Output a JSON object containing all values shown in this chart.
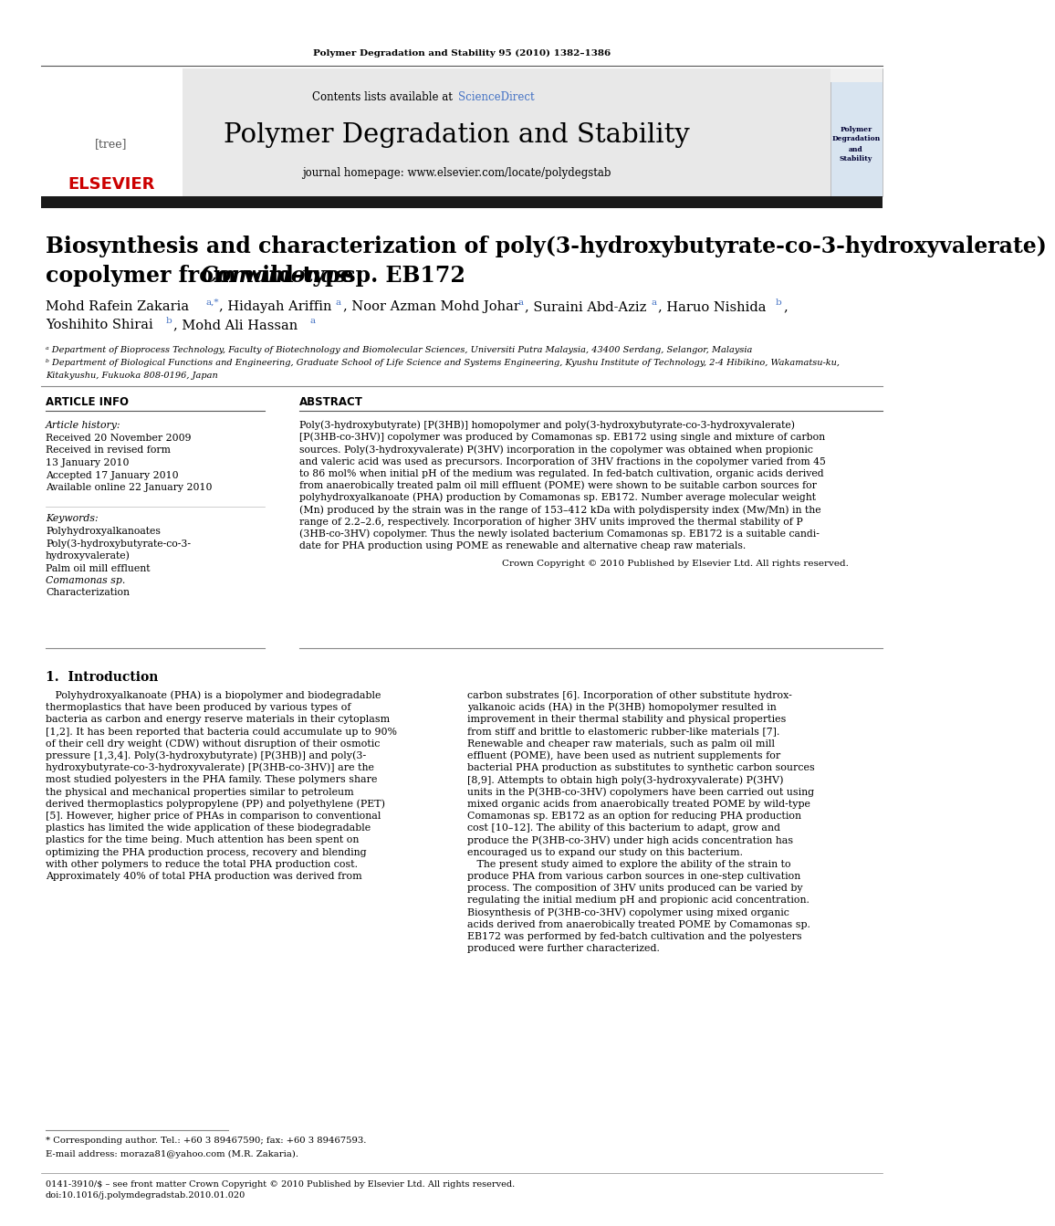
{
  "journal_header": "Polymer Degradation and Stability 95 (2010) 1382–1386",
  "contents_line": "Contents lists available at ScienceDirect",
  "sciencedirect_color": "#4472c4",
  "journal_name": "Polymer Degradation and Stability",
  "journal_homepage": "journal homepage: www.elsevier.com/locate/polydegstab",
  "elsevier_color": "#cc0000",
  "header_bg": "#e8e8e8",
  "dark_bar_color": "#1a1a1a",
  "title_line1": "Biosynthesis and characterization of poly(3-hydroxybutyrate-co-3-hydroxyvalerate)",
  "title_line2": "copolymer from wild-type ",
  "title_line2_italic": "Comamonas",
  "title_line2_rest": " sp. EB172",
  "article_info_label": "ARTICLE INFO",
  "abstract_label": "ABSTRACT",
  "article_history_label": "Article history:",
  "received1": "Received 20 November 2009",
  "received2": "Received in revised form",
  "received3": "13 January 2010",
  "accepted": "Accepted 17 January 2010",
  "available": "Available online 22 January 2010",
  "keywords_label": "Keywords:",
  "kw1": "Polyhydroxyalkanoates",
  "kw2": "Poly(3-hydroxybutyrate-co-3-",
  "kw3": "hydroxyvalerate)",
  "kw4": "Palm oil mill effluent",
  "kw5": "Comamonas sp.",
  "kw6": "Characterization",
  "copyright": "Crown Copyright © 2010 Published by Elsevier Ltd. All rights reserved.",
  "intro_heading": "1.  Introduction",
  "affil_a": "ᵃ Department of Bioprocess Technology, Faculty of Biotechnology and Biomolecular Sciences, Universiti Putra Malaysia, 43400 Serdang, Selangor, Malaysia",
  "affil_b": "ᵇ Department of Biological Functions and Engineering, Graduate School of Life Science and Systems Engineering, Kyushu Institute of Technology, 2-4 Hibikino, Wakamatsu-ku,",
  "affil_b2": "Kitakyushu, Fukuoka 808-0196, Japan",
  "footnote_star": "* Corresponding author. Tel.: +60 3 89467590; fax: +60 3 89467593.",
  "footnote_email": "E-mail address: moraza81@yahoo.com (M.R. Zakaria).",
  "footer_issn": "0141-3910/$ – see front matter Crown Copyright © 2010 Published by Elsevier Ltd. All rights reserved.",
  "footer_doi": "doi:10.1016/j.polymdegradstab.2010.01.020",
  "bg_color": "#ffffff",
  "text_color": "#000000",
  "link_color": "#2255aa",
  "abstract_lines": [
    "Poly(3-hydroxybutyrate) [P(3HB)] homopolymer and poly(3-hydroxybutyrate-co-3-hydroxyvalerate)",
    "[P(3HB-co-3HV)] copolymer was produced by Comamonas sp. EB172 using single and mixture of carbon",
    "sources. Poly(3-hydroxyvalerate) P(3HV) incorporation in the copolymer was obtained when propionic",
    "and valeric acid was used as precursors. Incorporation of 3HV fractions in the copolymer varied from 45",
    "to 86 mol% when initial pH of the medium was regulated. In fed-batch cultivation, organic acids derived",
    "from anaerobically treated palm oil mill effluent (POME) were shown to be suitable carbon sources for",
    "polyhydroxyalkanoate (PHA) production by Comamonas sp. EB172. Number average molecular weight",
    "(Mn) produced by the strain was in the range of 153–412 kDa with polydispersity index (Mw/Mn) in the",
    "range of 2.2–2.6, respectively. Incorporation of higher 3HV units improved the thermal stability of P",
    "(3HB-co-3HV) copolymer. Thus the newly isolated bacterium Comamonas sp. EB172 is a suitable candi-",
    "date for PHA production using POME as renewable and alternative cheap raw materials."
  ],
  "intro_left_lines": [
    "   Polyhydroxyalkanoate (PHA) is a biopolymer and biodegradable",
    "thermoplastics that have been produced by various types of",
    "bacteria as carbon and energy reserve materials in their cytoplasm",
    "[1,2]. It has been reported that bacteria could accumulate up to 90%",
    "of their cell dry weight (CDW) without disruption of their osmotic",
    "pressure [1,3,4]. Poly(3-hydroxybutyrate) [P(3HB)] and poly(3-",
    "hydroxybutyrate-co-3-hydroxyvalerate) [P(3HB-co-3HV)] are the",
    "most studied polyesters in the PHA family. These polymers share",
    "the physical and mechanical properties similar to petroleum",
    "derived thermoplastics polypropylene (PP) and polyethylene (PET)",
    "[5]. However, higher price of PHAs in comparison to conventional",
    "plastics has limited the wide application of these biodegradable",
    "plastics for the time being. Much attention has been spent on",
    "optimizing the PHA production process, recovery and blending",
    "with other polymers to reduce the total PHA production cost.",
    "Approximately 40% of total PHA production was derived from"
  ],
  "intro_right_lines": [
    "carbon substrates [6]. Incorporation of other substitute hydrox-",
    "yalkanoic acids (HA) in the P(3HB) homopolymer resulted in",
    "improvement in their thermal stability and physical properties",
    "from stiff and brittle to elastomeric rubber-like materials [7].",
    "Renewable and cheaper raw materials, such as palm oil mill",
    "effluent (POME), have been used as nutrient supplements for",
    "bacterial PHA production as substitutes to synthetic carbon sources",
    "[8,9]. Attempts to obtain high poly(3-hydroxyvalerate) P(3HV)",
    "units in the P(3HB-co-3HV) copolymers have been carried out using",
    "mixed organic acids from anaerobically treated POME by wild-type",
    "Comamonas sp. EB172 as an option for reducing PHA production",
    "cost [10–12]. The ability of this bacterium to adapt, grow and",
    "produce the P(3HB-co-3HV) under high acids concentration has",
    "encouraged us to expand our study on this bacterium.",
    "   The present study aimed to explore the ability of the strain to",
    "produce PHA from various carbon sources in one-step cultivation",
    "process. The composition of 3HV units produced can be varied by",
    "regulating the initial medium pH and propionic acid concentration.",
    "Biosynthesis of P(3HB-co-3HV) copolymer using mixed organic",
    "acids derived from anaerobically treated POME by Comamonas sp.",
    "EB172 was performed by fed-batch cultivation and the polyesters",
    "produced were further characterized."
  ]
}
